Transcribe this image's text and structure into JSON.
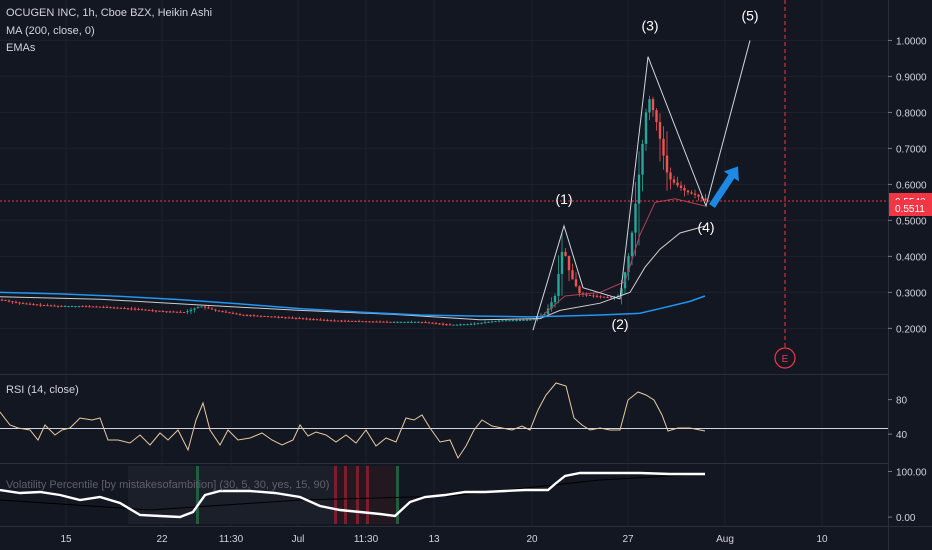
{
  "legend": {
    "symbol_line": "OCUGEN INC, 1h, Cboe BZX, Heikin Ashi",
    "ma_line": "MA (200, close, 0)",
    "ema_line": "EMAs"
  },
  "price_axis": {
    "ticks": [
      "1.0000",
      "0.9000",
      "0.8000",
      "0.7000",
      "0.6000",
      "0.5000",
      "0.4000",
      "0.3000",
      "0.2000"
    ],
    "tick_values": [
      1.0,
      0.9,
      0.8,
      0.7,
      0.6,
      0.5,
      0.4,
      0.3,
      0.2
    ],
    "current_price_label": "0.5540",
    "current_price": 0.554,
    "last_close_label": "0.5511",
    "last_close": 0.5511,
    "range": [
      0.12,
      1.05
    ]
  },
  "time_axis": {
    "labels": [
      "15",
      "22",
      "11:30",
      "Jul",
      "11:30",
      "13",
      "20",
      "27",
      "Aug",
      "10"
    ]
  },
  "waves": {
    "labels": [
      "(1)",
      "(2)",
      "(3)",
      "(4)",
      "(5)"
    ],
    "earnings_marker": "E"
  },
  "rsi": {
    "title": "RSI (14, close)",
    "ticks": [
      "80",
      "40"
    ],
    "tick_values": [
      80,
      40
    ],
    "range": [
      10,
      105
    ]
  },
  "vol_percentile": {
    "title": "Volatility Percentile [by mistakesofambition] (30, 5, 30, yes, 15, 90)",
    "ticks": [
      "100.00",
      "0.00"
    ],
    "tick_values": [
      100,
      0
    ],
    "range": [
      -15,
      112
    ]
  },
  "colors": {
    "background": "#131722",
    "up": "#26a69a",
    "down": "#ef5350",
    "ma200": "#2196f3",
    "wave_lines": "#d1d4dc",
    "rsi": "#e8c9a0",
    "vol": "#ffffff",
    "arrow": "#1e88e5",
    "price_line": "#f23645"
  },
  "chart_data": {
    "type": "candlestick",
    "title": "OCUGEN INC, 1h, Cboe BZX, Heikin Ashi",
    "price_range": [
      0.12,
      1.05
    ],
    "series_ma200": [
      [
        0,
        0.3
      ],
      [
        60,
        0.296
      ],
      [
        120,
        0.289
      ],
      [
        180,
        0.28
      ],
      [
        240,
        0.268
      ],
      [
        300,
        0.255
      ],
      [
        360,
        0.245
      ],
      [
        420,
        0.237
      ],
      [
        480,
        0.234
      ],
      [
        530,
        0.232
      ],
      [
        560,
        0.234
      ],
      [
        600,
        0.237
      ],
      [
        640,
        0.242
      ],
      [
        660,
        0.255
      ],
      [
        690,
        0.275
      ],
      [
        705,
        0.29
      ]
    ],
    "series_ema_slow": [
      [
        0,
        0.288
      ],
      [
        100,
        0.281
      ],
      [
        200,
        0.265
      ],
      [
        300,
        0.25
      ],
      [
        400,
        0.238
      ],
      [
        480,
        0.224
      ],
      [
        540,
        0.227
      ],
      [
        560,
        0.25
      ],
      [
        600,
        0.27
      ],
      [
        630,
        0.3
      ],
      [
        645,
        0.37
      ],
      [
        660,
        0.42
      ],
      [
        680,
        0.465
      ],
      [
        705,
        0.484
      ]
    ],
    "series_ema_fast": [
      [
        540,
        0.23
      ],
      [
        565,
        0.29
      ],
      [
        600,
        0.3
      ],
      [
        625,
        0.33
      ],
      [
        640,
        0.46
      ],
      [
        655,
        0.55
      ],
      [
        675,
        0.56
      ],
      [
        705,
        0.54
      ]
    ],
    "wave_path": [
      [
        533,
        0.195
      ],
      [
        564,
        0.485
      ],
      [
        583,
        0.313
      ],
      [
        620,
        0.282
      ],
      [
        648,
        0.955
      ],
      [
        706,
        0.54
      ],
      [
        750,
        1.0
      ]
    ],
    "wave_label_points": [
      [
        564,
        0.485
      ],
      [
        620,
        0.282
      ],
      [
        650,
        0.955
      ],
      [
        706,
        0.54
      ],
      [
        750,
        1.0
      ]
    ],
    "candle_keys": [
      [
        0,
        0.28
      ],
      [
        20,
        0.27
      ],
      [
        40,
        0.265
      ],
      [
        60,
        0.262
      ],
      [
        80,
        0.262
      ],
      [
        100,
        0.26
      ],
      [
        130,
        0.255
      ],
      [
        160,
        0.248
      ],
      [
        185,
        0.245
      ],
      [
        200,
        0.262
      ],
      [
        215,
        0.25
      ],
      [
        240,
        0.238
      ],
      [
        270,
        0.233
      ],
      [
        300,
        0.228
      ],
      [
        330,
        0.222
      ],
      [
        360,
        0.22
      ],
      [
        390,
        0.218
      ],
      [
        420,
        0.218
      ],
      [
        450,
        0.21
      ],
      [
        470,
        0.212
      ],
      [
        500,
        0.222
      ],
      [
        530,
        0.224
      ],
      [
        545,
        0.24
      ],
      [
        555,
        0.29
      ],
      [
        563,
        0.43
      ],
      [
        570,
        0.35
      ],
      [
        580,
        0.295
      ],
      [
        595,
        0.29
      ],
      [
        610,
        0.285
      ],
      [
        620,
        0.292
      ],
      [
        630,
        0.42
      ],
      [
        640,
        0.65
      ],
      [
        648,
        0.85
      ],
      [
        656,
        0.78
      ],
      [
        662,
        0.7
      ],
      [
        668,
        0.62
      ],
      [
        676,
        0.6
      ],
      [
        686,
        0.58
      ],
      [
        696,
        0.57
      ],
      [
        706,
        0.555
      ]
    ],
    "arrow": [
      [
        712,
        0.54
      ],
      [
        738,
        0.65
      ]
    ],
    "rsi_points": [
      [
        0,
        412
      ],
      [
        10,
        425
      ],
      [
        18,
        428
      ],
      [
        30,
        430
      ],
      [
        38,
        440
      ],
      [
        45,
        425
      ],
      [
        55,
        435
      ],
      [
        62,
        430
      ],
      [
        70,
        428
      ],
      [
        80,
        418
      ],
      [
        92,
        420
      ],
      [
        100,
        418
      ],
      [
        108,
        440
      ],
      [
        118,
        440
      ],
      [
        130,
        443
      ],
      [
        140,
        435
      ],
      [
        150,
        445
      ],
      [
        160,
        433
      ],
      [
        168,
        440
      ],
      [
        178,
        430
      ],
      [
        188,
        450
      ],
      [
        196,
        420
      ],
      [
        203,
        403
      ],
      [
        210,
        430
      ],
      [
        220,
        445
      ],
      [
        228,
        430
      ],
      [
        238,
        440
      ],
      [
        250,
        438
      ],
      [
        262,
        433
      ],
      [
        272,
        440
      ],
      [
        282,
        445
      ],
      [
        293,
        440
      ],
      [
        300,
        425
      ],
      [
        308,
        436
      ],
      [
        316,
        432
      ],
      [
        326,
        435
      ],
      [
        336,
        442
      ],
      [
        346,
        435
      ],
      [
        356,
        443
      ],
      [
        366,
        430
      ],
      [
        376,
        446
      ],
      [
        386,
        438
      ],
      [
        396,
        442
      ],
      [
        406,
        418
      ],
      [
        414,
        420
      ],
      [
        422,
        415
      ],
      [
        430,
        428
      ],
      [
        440,
        442
      ],
      [
        450,
        440
      ],
      [
        458,
        458
      ],
      [
        466,
        446
      ],
      [
        474,
        430
      ],
      [
        482,
        420
      ],
      [
        492,
        426
      ],
      [
        502,
        428
      ],
      [
        512,
        430
      ],
      [
        522,
        426
      ],
      [
        530,
        430
      ],
      [
        538,
        410
      ],
      [
        546,
        395
      ],
      [
        556,
        383
      ],
      [
        566,
        386
      ],
      [
        574,
        418
      ],
      [
        582,
        425
      ],
      [
        590,
        430
      ],
      [
        600,
        428
      ],
      [
        610,
        430
      ],
      [
        620,
        430
      ],
      [
        628,
        400
      ],
      [
        638,
        392
      ],
      [
        646,
        395
      ],
      [
        654,
        400
      ],
      [
        662,
        415
      ],
      [
        668,
        431
      ],
      [
        678,
        428
      ],
      [
        690,
        428
      ],
      [
        705,
        431
      ]
    ],
    "vol_points": [
      [
        0,
        490
      ],
      [
        20,
        493
      ],
      [
        40,
        492
      ],
      [
        60,
        495
      ],
      [
        80,
        500
      ],
      [
        100,
        497
      ],
      [
        120,
        503
      ],
      [
        140,
        515
      ],
      [
        160,
        516
      ],
      [
        180,
        517
      ],
      [
        193,
        512
      ],
      [
        205,
        495
      ],
      [
        220,
        491
      ],
      [
        250,
        491
      ],
      [
        275,
        493
      ],
      [
        300,
        497
      ],
      [
        320,
        506
      ],
      [
        340,
        510
      ],
      [
        360,
        512
      ],
      [
        380,
        514
      ],
      [
        395,
        516
      ],
      [
        410,
        502
      ],
      [
        425,
        497
      ],
      [
        445,
        495
      ],
      [
        465,
        492
      ],
      [
        485,
        492
      ],
      [
        505,
        491
      ],
      [
        525,
        490
      ],
      [
        548,
        490
      ],
      [
        555,
        484
      ],
      [
        565,
        476
      ],
      [
        580,
        473
      ],
      [
        610,
        473
      ],
      [
        640,
        473
      ],
      [
        670,
        474
      ],
      [
        690,
        474
      ],
      [
        705,
        474
      ]
    ]
  }
}
